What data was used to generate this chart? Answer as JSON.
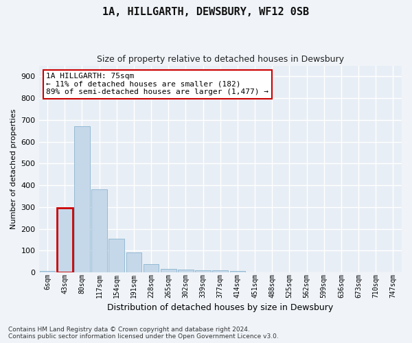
{
  "title": "1A, HILLGARTH, DEWSBURY, WF12 0SB",
  "subtitle": "Size of property relative to detached houses in Dewsbury",
  "xlabel": "Distribution of detached houses by size in Dewsbury",
  "ylabel": "Number of detached properties",
  "bar_color": "#c5d8ea",
  "bar_edge_color": "#7aaac8",
  "highlight_bar_edge_color": "#cc0000",
  "background_color": "#e8eef5",
  "grid_color": "#ffffff",
  "fig_background_color": "#f0f4f9",
  "footnote": "Contains HM Land Registry data © Crown copyright and database right 2024.\nContains public sector information licensed under the Open Government Licence v3.0.",
  "annotation_text": "1A HILLGARTH: 75sqm\n← 11% of detached houses are smaller (182)\n89% of semi-detached houses are larger (1,477) →",
  "annotation_box_color": "#ffffff",
  "annotation_box_edge_color": "#cc0000",
  "bin_labels": [
    "6sqm",
    "43sqm",
    "80sqm",
    "117sqm",
    "154sqm",
    "191sqm",
    "228sqm",
    "265sqm",
    "302sqm",
    "339sqm",
    "377sqm",
    "414sqm",
    "451sqm",
    "488sqm",
    "525sqm",
    "562sqm",
    "599sqm",
    "636sqm",
    "673sqm",
    "710sqm",
    "747sqm"
  ],
  "bar_heights": [
    7,
    295,
    672,
    380,
    155,
    90,
    38,
    15,
    12,
    10,
    10,
    7,
    0,
    0,
    0,
    0,
    0,
    0,
    0,
    0,
    0
  ],
  "highlight_index": 1,
  "ylim": [
    0,
    950
  ],
  "yticks": [
    0,
    100,
    200,
    300,
    400,
    500,
    600,
    700,
    800,
    900
  ]
}
